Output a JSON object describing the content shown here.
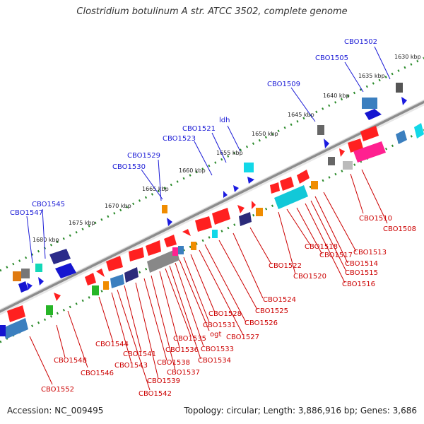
{
  "title": "Clostridium botulinum A str. ATCC 3502, complete genome",
  "footer": {
    "accession": "Accession: NC_009495",
    "summary": "Topology: circular; Length: 3,886,916 bp; Genes: 3,686"
  },
  "colors": {
    "backbone": "#9a9a9a",
    "forward_label": "#1a1ad6",
    "reverse_label": "#cc0000",
    "tick_dots": "#2a8a2a"
  },
  "tick_labels": [
    "1630 kbp",
    "1635 kbp",
    "1640 kbp",
    "1645 kbp",
    "1650 kbp",
    "1655 kbp",
    "1660 kbp",
    "1665 kbp",
    "1670 kbp",
    "1675 kbp",
    "1680 kbp"
  ],
  "forward_genes": [
    "CBO1502",
    "CBO1505",
    "CBO1509",
    "ldh",
    "CBO1521",
    "CBO1523",
    "CBO1529",
    "CBO1530",
    "CBO1545",
    "CBO1547"
  ],
  "reverse_genes": [
    "CBO1508",
    "CBO1510",
    "CBO1513",
    "CBO1514",
    "CBO1515",
    "CBO1516",
    "CBO1517",
    "CBO1518",
    "CBO1520",
    "CBO1522",
    "CBO1524",
    "CBO1525",
    "CBO1526",
    "CBO1527",
    "CBO1528",
    "CBO1531",
    "ogt",
    "CBO1533",
    "CBO1534",
    "CBO1535",
    "CBO1536",
    "CBO1537",
    "CBO1538",
    "CBO1539",
    "CBO1541",
    "CBO1542",
    "CBO1543",
    "CBO1544",
    "CBO1546",
    "CBO1548",
    "CBO1552"
  ]
}
